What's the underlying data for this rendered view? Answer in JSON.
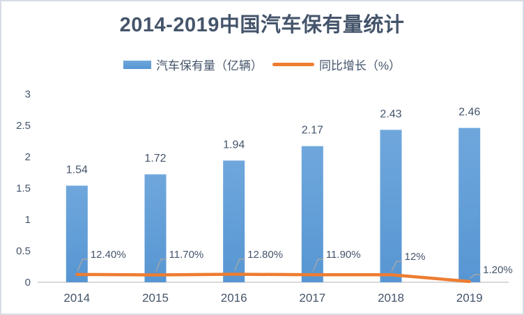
{
  "chart_data": {
    "type": "bar",
    "title": "2014-2019中国汽车保有量统计",
    "categories": [
      "2014",
      "2015",
      "2016",
      "2017",
      "2018",
      "2019"
    ],
    "series": [
      {
        "name": "汽车保有量（亿辆）",
        "type": "bar",
        "values": [
          1.54,
          1.72,
          1.94,
          2.17,
          2.43,
          2.46
        ],
        "labels": [
          "1.54",
          "1.72",
          "1.94",
          "2.17",
          "2.43",
          "2.46"
        ]
      },
      {
        "name": "同比增长（%）",
        "type": "line",
        "values": [
          12.4,
          11.7,
          12.8,
          11.9,
          12.0,
          1.2
        ],
        "labels": [
          "12.40%",
          "11.70%",
          "12.80%",
          "11.90%",
          "12%",
          "1.20%"
        ],
        "plotted_on_left_axis_scale": 0.01
      }
    ],
    "y_axis": {
      "min": 0,
      "max": 3,
      "tick_step": 0.5,
      "tick_labels": [
        "0",
        "0.5",
        "1",
        "1.5",
        "2",
        "2.5",
        "3"
      ]
    },
    "legend_position": "top",
    "grid": false,
    "colors": {
      "bar_top": "#6fa7dc",
      "bar_bottom": "#5796d3",
      "bar_main": "#5b9bd5",
      "line": "#ed7d31",
      "text": "#44546a",
      "axis_line": "#d9d9d9",
      "leader_line": "#a6a6a6",
      "border": "#d7dce4"
    }
  },
  "legend": {
    "bar_label": "汽车保有量（亿辆）",
    "line_label": "同比增长（%）"
  }
}
